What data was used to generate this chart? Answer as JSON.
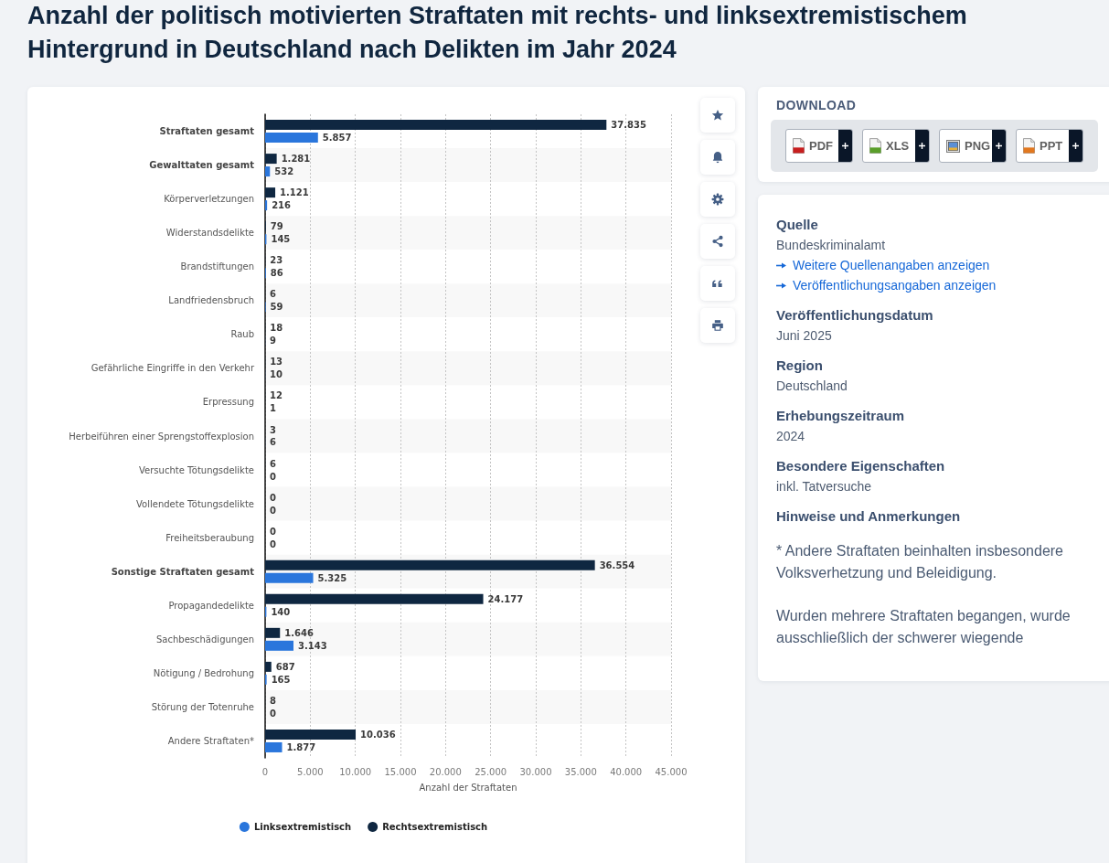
{
  "chart_data": {
    "type": "bar",
    "orientation": "horizontal",
    "title": "Anzahl der politisch motivierten Straftaten mit rechts- und linksextremistischem Hintergrund in Deutschland nach Delikten im Jahr 2024",
    "categories": [
      "Straftaten gesamt",
      "Gewalttaten gesamt",
      "Körperverletzungen",
      "Widerstandsdelikte",
      "Brandstiftungen",
      "Landfriedensbruch",
      "Raub",
      "Gefährliche Eingriffe in den Verkehr",
      "Erpressung",
      "Herbeiführen einer Sprengstoffexplosion",
      "Versuchte Tötungsdelikte",
      "Vollendete Tötungsdelikte",
      "Freiheitsberaubung",
      "Sonstige Straftaten gesamt",
      "Propagandedelikte",
      "Sachbeschädigungen",
      "Nötigung / Bedrohung",
      "Störung der Totenruhe",
      "Andere Straftaten*"
    ],
    "series": [
      {
        "name": "Linksextremistisch",
        "color": "#2a76dc",
        "values": [
          5857,
          532,
          216,
          145,
          86,
          59,
          9,
          10,
          1,
          6,
          0,
          0,
          0,
          5325,
          140,
          3143,
          165,
          0,
          1877
        ],
        "value_labels": [
          "5.857",
          "532",
          "216",
          "145",
          "86",
          "59",
          "9",
          "10",
          "1",
          "6",
          "0",
          "0",
          "0",
          "5.325",
          "140",
          "3.143",
          "165",
          "0",
          "1.877"
        ]
      },
      {
        "name": "Rechtsextremistisch",
        "color": "#0f2741",
        "values": [
          37835,
          1281,
          1121,
          79,
          23,
          6,
          18,
          13,
          12,
          3,
          6,
          0,
          0,
          36554,
          24177,
          1646,
          687,
          8,
          10036
        ],
        "value_labels": [
          "37.835",
          "1.281",
          "1.121",
          "79",
          "23",
          "6",
          "18",
          "13",
          "12",
          "3",
          "6",
          "0",
          "0",
          "36.554",
          "24.177",
          "1.646",
          "687",
          "8",
          "10.036"
        ]
      }
    ],
    "xlabel": "Anzahl der Straftaten",
    "xlim": [
      0,
      45000
    ],
    "xticks": [
      0,
      {
        "value": 5000,
        "label": "5.000"
      },
      {
        "value": 10000,
        "label": "10.000"
      },
      {
        "value": 15000,
        "label": "15.000"
      },
      {
        "value": 20000,
        "label": "20.000"
      },
      {
        "value": 25000,
        "label": "25.000"
      },
      {
        "value": 30000,
        "label": "30.000"
      },
      {
        "value": 35000,
        "label": "35.000"
      },
      {
        "value": 40000,
        "label": "40.000"
      },
      {
        "value": 45000,
        "label": "45.000"
      }
    ],
    "grid": "x",
    "legend": "bottom",
    "annotations": [
      "DOWNLOAD",
      "PDF",
      "XLS",
      "PNG",
      "PPT",
      "Quelle",
      "Bundeskriminalamt",
      "Weitere Quellenangaben anzeigen",
      "Veröffentlichungsangaben anzeigen",
      "Veröffentlichungsdatum",
      "Juni 2025",
      "Region",
      "Deutschland",
      "Erhebungszeitraum",
      "2024",
      "Besondere Eigenschaften",
      "inkl. Tatversuche",
      "Hinweise und Anmerkungen",
      "* Andere Straftaten beinhalten insbesondere Volksverhetzung und Beleidigung.",
      "Wurden mehrere Straftaten begangen, wurde ausschließlich der schwerer wiegende"
    ]
  }
}
